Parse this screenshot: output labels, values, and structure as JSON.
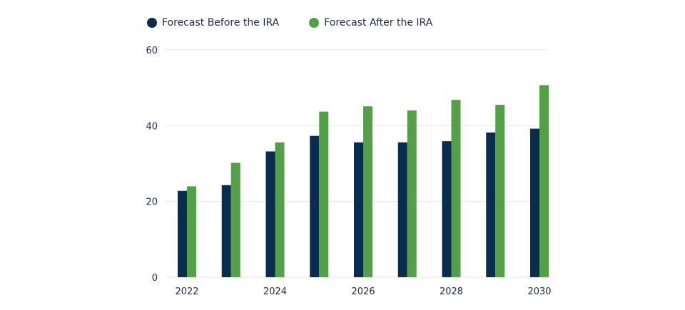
{
  "colors": {
    "before": "#082d4f",
    "after": "#53a146",
    "grid": "#e3e6ea",
    "text": "#1c2b4a"
  },
  "legend": [
    {
      "label": "Forecast Before the IRA",
      "color": "#082d4f"
    },
    {
      "label": "Forecast After the IRA",
      "color": "#53a146"
    }
  ],
  "chart_data": {
    "type": "bar",
    "categories": [
      2022,
      2023,
      2024,
      2025,
      2026,
      2027,
      2028,
      2029,
      2030
    ],
    "x_tick_labels": [
      "2022",
      "2024",
      "2026",
      "2028",
      "2030"
    ],
    "y_tick_labels": [
      "0",
      "20",
      "40",
      "60"
    ],
    "ylim": [
      0,
      60
    ],
    "grid": true,
    "legend_position": "top-left",
    "series": [
      {
        "name": "Forecast Before the IRA",
        "values": [
          22.8,
          24.3,
          33.2,
          37.3,
          35.6,
          35.6,
          35.9,
          38.2,
          39.2
        ]
      },
      {
        "name": "Forecast After the IRA",
        "values": [
          24.0,
          30.2,
          35.6,
          43.7,
          45.1,
          44.0,
          46.8,
          45.5,
          50.7
        ]
      }
    ]
  }
}
